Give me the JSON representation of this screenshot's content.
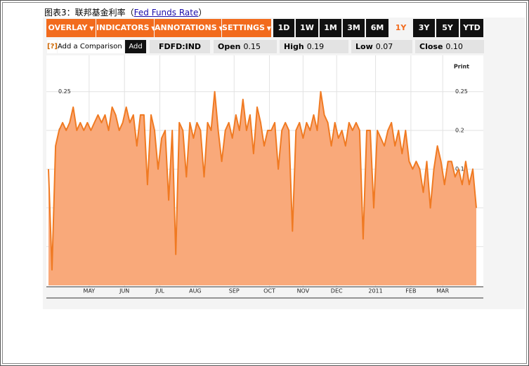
{
  "header": {
    "prefix": "图表3：联邦基金利率（",
    "link": "Fed Funds Rate",
    "suffix": "）"
  },
  "toolbar": {
    "menus": [
      "OVERLAY",
      "INDICATORS",
      "ANNOTATIONS",
      "SETTINGS"
    ],
    "ranges": [
      "1D",
      "1W",
      "1M",
      "3M",
      "6M",
      "1Y",
      "3Y",
      "5Y",
      "YTD"
    ],
    "selected_range": 5
  },
  "quote_bar": {
    "help": "[?]",
    "compare": "Add a Comparison",
    "add": "Add",
    "ticker": "FDFD:IND",
    "fields": [
      {
        "label": "Open",
        "value": "0.15"
      },
      {
        "label": "High",
        "value": "0.19"
      },
      {
        "label": "Low",
        "value": "0.07"
      },
      {
        "label": "Close",
        "value": "0.10"
      }
    ]
  },
  "chart_data": {
    "type": "area",
    "print_label": "Print",
    "xlim": [
      0,
      121
    ],
    "xticks": [
      {
        "value": 11.5,
        "label": "MAY"
      },
      {
        "value": 21.5,
        "label": "JUN"
      },
      {
        "value": 31.5,
        "label": "JUL"
      },
      {
        "value": 41.5,
        "label": "AUG"
      },
      {
        "value": 52.5,
        "label": "SEP"
      },
      {
        "value": 62.5,
        "label": "OCT"
      },
      {
        "value": 72,
        "label": "NOV"
      },
      {
        "value": 81.5,
        "label": "DEC"
      },
      {
        "value": 92.5,
        "label": "2011"
      },
      {
        "value": 102.5,
        "label": "FEB"
      },
      {
        "value": 111.5,
        "label": "MAR"
      }
    ],
    "ylim": [
      0,
      0.295
    ],
    "yticks": [
      0.05,
      0.1,
      0.15,
      0.2,
      0.25
    ],
    "grid": true,
    "line_color": "#f07a22",
    "fill_color": "#f9a97a",
    "values": [
      0.15,
      0.02,
      0.18,
      0.2,
      0.21,
      0.2,
      0.21,
      0.23,
      0.2,
      0.21,
      0.2,
      0.21,
      0.2,
      0.21,
      0.22,
      0.21,
      0.22,
      0.2,
      0.23,
      0.22,
      0.2,
      0.21,
      0.23,
      0.21,
      0.22,
      0.18,
      0.22,
      0.22,
      0.13,
      0.22,
      0.2,
      0.15,
      0.19,
      0.2,
      0.11,
      0.2,
      0.04,
      0.21,
      0.2,
      0.14,
      0.21,
      0.19,
      0.21,
      0.2,
      0.14,
      0.21,
      0.2,
      0.25,
      0.2,
      0.16,
      0.2,
      0.21,
      0.19,
      0.22,
      0.2,
      0.24,
      0.2,
      0.22,
      0.17,
      0.23,
      0.21,
      0.18,
      0.2,
      0.2,
      0.21,
      0.15,
      0.2,
      0.21,
      0.2,
      0.07,
      0.2,
      0.21,
      0.19,
      0.21,
      0.2,
      0.22,
      0.2,
      0.25,
      0.22,
      0.21,
      0.18,
      0.21,
      0.19,
      0.2,
      0.18,
      0.21,
      0.2,
      0.21,
      0.2,
      0.06,
      0.2,
      0.2,
      0.1,
      0.2,
      0.19,
      0.18,
      0.2,
      0.21,
      0.18,
      0.2,
      0.17,
      0.2,
      0.16,
      0.15,
      0.16,
      0.15,
      0.12,
      0.16,
      0.1,
      0.15,
      0.18,
      0.16,
      0.13,
      0.16,
      0.16,
      0.14,
      0.15,
      0.13,
      0.16,
      0.13,
      0.15,
      0.1
    ]
  }
}
